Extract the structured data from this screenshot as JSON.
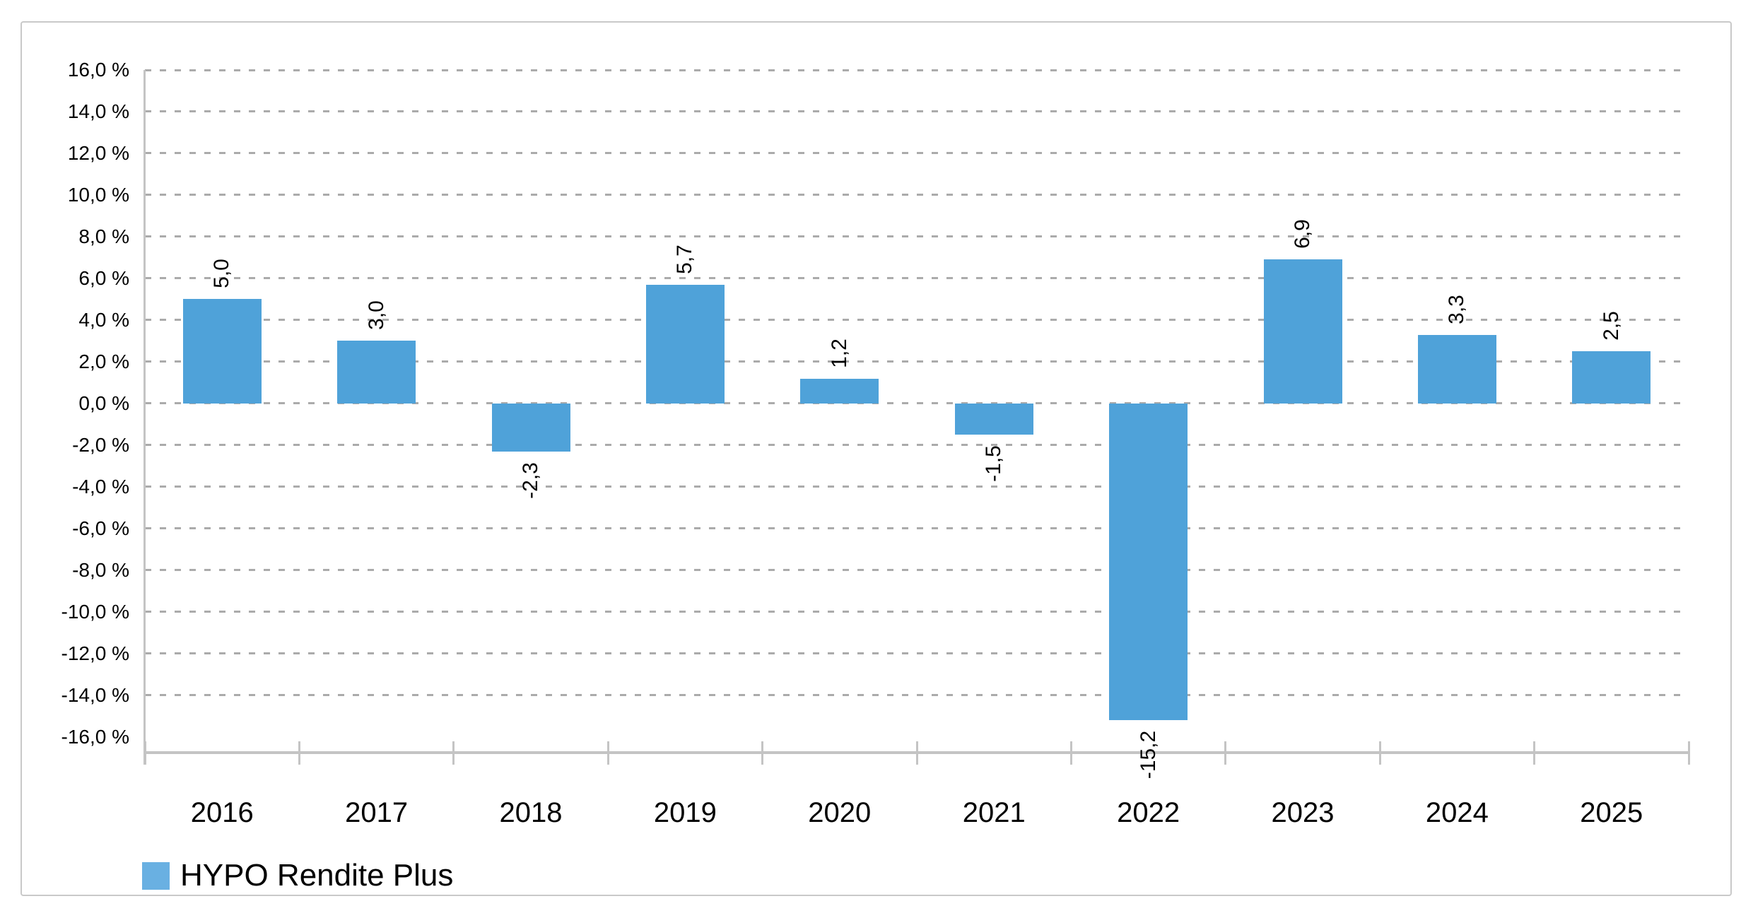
{
  "chart_data": {
    "type": "bar",
    "title": "",
    "categories": [
      "2016",
      "2017",
      "2018",
      "2019",
      "2020",
      "2021",
      "2022",
      "2023",
      "2024",
      "2025"
    ],
    "series": [
      {
        "name": "HYPO Rendite Plus",
        "values": [
          5.0,
          3.0,
          -2.3,
          5.7,
          1.2,
          -1.5,
          -15.2,
          6.9,
          3.3,
          2.5
        ]
      }
    ],
    "value_labels": [
      "5,0",
      "3,0",
      "-2,3",
      "5,7",
      "1,2",
      "-1,5",
      "-15,2",
      "6,9",
      "3,3",
      "2,5"
    ],
    "value_label_rotation_deg": -90,
    "y_axis": {
      "unit": "%",
      "tick_values": [
        16,
        14,
        12,
        10,
        8,
        6,
        4,
        2,
        0,
        -2,
        -4,
        -6,
        -8,
        -10,
        -12,
        -14,
        -16
      ],
      "tick_labels": [
        "16,0 %",
        "14,0 %",
        "12,0 %",
        "10,0 %",
        "8,0 %",
        "6,0 %",
        "4,0 %",
        "2,0 %",
        "0,0 %",
        "-2,0 %",
        "-4,0 %",
        "-6,0 %",
        "-8,0 %",
        "-10,0 %",
        "-12,0 %",
        "-14,0 %",
        "-16,0 %"
      ],
      "ymax": 16,
      "ymin_plot": -16.75,
      "lowest_gridline": -14
    },
    "x_axis": {
      "label": "",
      "boundary_ticks": true
    },
    "grid": "horizontal-dashed",
    "legend": {
      "position": "bottom-left",
      "label": "HYPO Rendite Plus",
      "swatch_color": "#69b0e2"
    },
    "colors": {
      "bar": "#4fa2d9",
      "gridline": "#ababab",
      "axis": "#c4c4c4",
      "text": "#000000",
      "card_border": "#c9c9c9"
    }
  }
}
